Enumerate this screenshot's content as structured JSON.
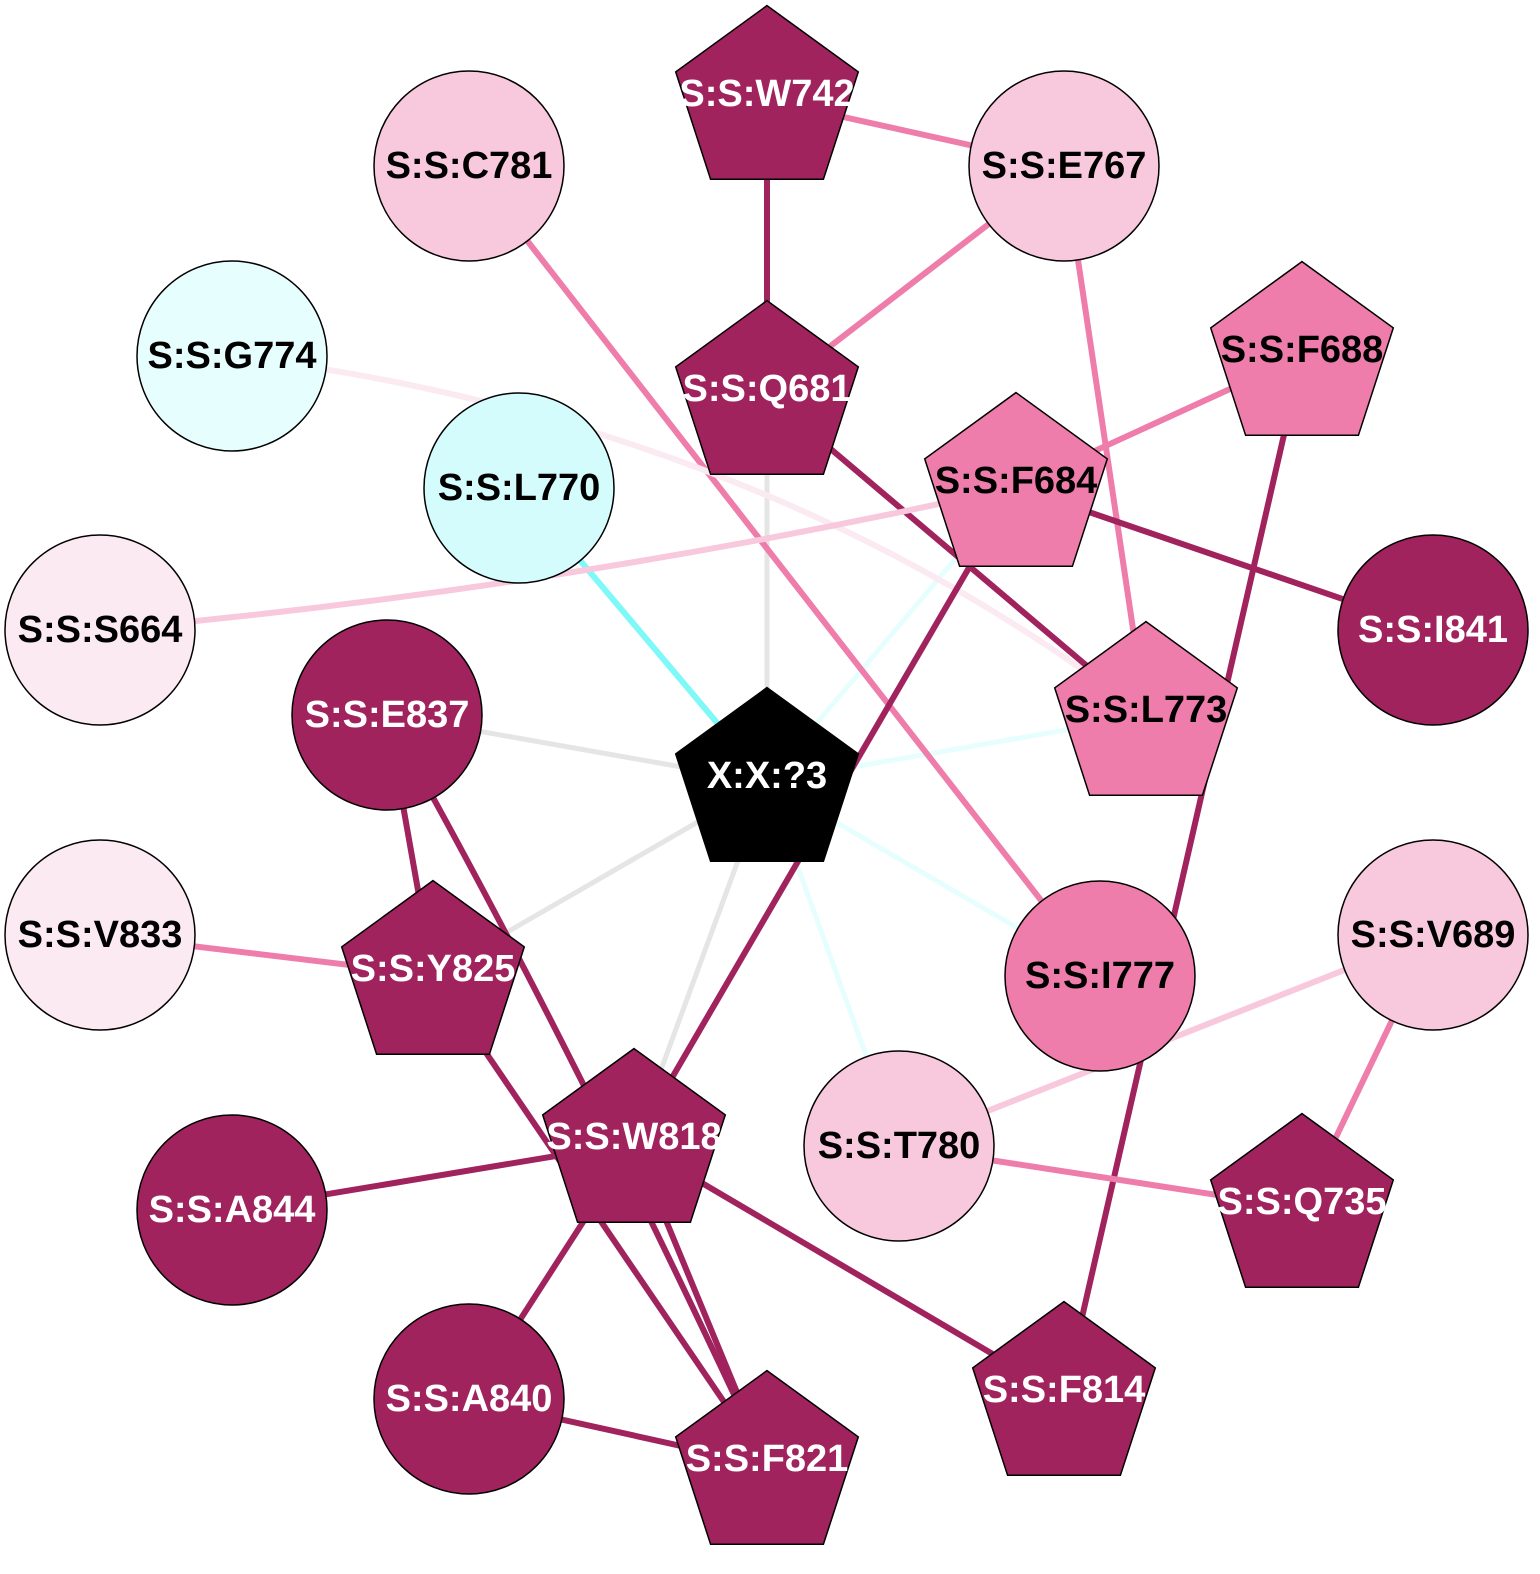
{
  "colors": {
    "dark": "#A0235E",
    "mid": "#EE7DAB",
    "light": "#F8C8DC",
    "pale": "#FBEAF1",
    "cyan": "#D4FCFC",
    "cyan_pale": "#E6FEFE",
    "center": "#000000",
    "edge_gray": "#E5E5E5"
  },
  "nodes": [
    {
      "id": "S:S:W742",
      "shape": "pentagon",
      "fill": "dark",
      "text": "white"
    },
    {
      "id": "S:S:C781",
      "shape": "circle",
      "fill": "light",
      "text": "black"
    },
    {
      "id": "S:S:E767",
      "shape": "circle",
      "fill": "light",
      "text": "black"
    },
    {
      "id": "S:S:G774",
      "shape": "circle",
      "fill": "cyan_pale",
      "text": "black"
    },
    {
      "id": "S:S:Q681",
      "shape": "pentagon",
      "fill": "dark",
      "text": "white"
    },
    {
      "id": "S:S:F688",
      "shape": "pentagon",
      "fill": "mid",
      "text": "black"
    },
    {
      "id": "S:S:L770",
      "shape": "circle",
      "fill": "cyan",
      "text": "black"
    },
    {
      "id": "S:S:F684",
      "shape": "pentagon",
      "fill": "mid",
      "text": "black"
    },
    {
      "id": "S:S:S664",
      "shape": "circle",
      "fill": "pale",
      "text": "black"
    },
    {
      "id": "S:S:I841",
      "shape": "circle",
      "fill": "dark",
      "text": "white"
    },
    {
      "id": "S:S:E837",
      "shape": "circle",
      "fill": "dark",
      "text": "white"
    },
    {
      "id": "S:S:L773",
      "shape": "pentagon",
      "fill": "mid",
      "text": "black"
    },
    {
      "id": "X:X:?3",
      "shape": "pentagon",
      "fill": "center",
      "text": "white"
    },
    {
      "id": "S:S:V833",
      "shape": "circle",
      "fill": "pale",
      "text": "black"
    },
    {
      "id": "S:S:Y825",
      "shape": "pentagon",
      "fill": "dark",
      "text": "white"
    },
    {
      "id": "S:S:I777",
      "shape": "circle",
      "fill": "mid",
      "text": "black"
    },
    {
      "id": "S:S:V689",
      "shape": "circle",
      "fill": "light",
      "text": "black"
    },
    {
      "id": "S:S:W818",
      "shape": "pentagon",
      "fill": "dark",
      "text": "white"
    },
    {
      "id": "S:S:T780",
      "shape": "circle",
      "fill": "light",
      "text": "black"
    },
    {
      "id": "S:S:A844",
      "shape": "circle",
      "fill": "dark",
      "text": "white"
    },
    {
      "id": "S:S:Q735",
      "shape": "pentagon",
      "fill": "dark",
      "text": "white"
    },
    {
      "id": "S:S:A840",
      "shape": "circle",
      "fill": "dark",
      "text": "white"
    },
    {
      "id": "S:S:F814",
      "shape": "pentagon",
      "fill": "dark",
      "text": "white"
    },
    {
      "id": "S:S:F821",
      "shape": "pentagon",
      "fill": "dark",
      "text": "white"
    }
  ],
  "edges": [
    {
      "source": "X:X:?3",
      "target": "S:S:L770",
      "color": "#7FF8F8"
    },
    {
      "source": "X:X:?3",
      "target": "S:S:Q681",
      "color": "#E5E5E5"
    },
    {
      "source": "X:X:?3",
      "target": "S:S:E837",
      "color": "#E5E5E5"
    },
    {
      "source": "X:X:?3",
      "target": "S:S:Y825",
      "color": "#E5E5E5"
    },
    {
      "source": "X:X:?3",
      "target": "S:S:W818",
      "color": "#E5E5E5"
    },
    {
      "source": "X:X:?3",
      "target": "S:S:F684",
      "color": "#E6FEFE"
    },
    {
      "source": "X:X:?3",
      "target": "S:S:L773",
      "color": "#E6FEFE"
    },
    {
      "source": "X:X:?3",
      "target": "S:S:I777",
      "color": "#E6FEFE"
    },
    {
      "source": "X:X:?3",
      "target": "S:S:T780",
      "color": "#E6FEFE"
    },
    {
      "source": "S:S:W742",
      "target": "S:S:Q681",
      "color": "#A0235E"
    },
    {
      "source": "S:S:W742",
      "target": "S:S:E767",
      "color": "#EE7DAB"
    },
    {
      "source": "S:S:E767",
      "target": "S:S:Q681",
      "color": "#EE7DAB"
    },
    {
      "source": "S:S:E767",
      "target": "S:S:L773",
      "color": "#EE7DAB"
    },
    {
      "source": "S:S:C781",
      "target": "S:S:I777",
      "color": "#EE7DAB"
    },
    {
      "source": "S:S:G774",
      "target": "S:S:L773",
      "color": "#FBEAF1"
    },
    {
      "source": "S:S:Q681",
      "target": "S:S:L773",
      "color": "#A0235E"
    },
    {
      "source": "S:S:F688",
      "target": "S:S:F684",
      "color": "#EE7DAB"
    },
    {
      "source": "S:S:F688",
      "target": "S:S:F814",
      "color": "#A0235E"
    },
    {
      "source": "S:S:F684",
      "target": "S:S:S664",
      "color": "#F8C8DC"
    },
    {
      "source": "S:S:F684",
      "target": "S:S:I841",
      "color": "#A0235E"
    },
    {
      "source": "S:S:F684",
      "target": "S:S:W818",
      "color": "#A0235E"
    },
    {
      "source": "S:S:E837",
      "target": "S:S:Y825",
      "color": "#A0235E"
    },
    {
      "source": "S:S:E837",
      "target": "S:S:F821",
      "color": "#A0235E"
    },
    {
      "source": "S:S:V833",
      "target": "S:S:Y825",
      "color": "#EE7DAB"
    },
    {
      "source": "S:S:Y825",
      "target": "S:S:F821",
      "color": "#A0235E"
    },
    {
      "source": "S:S:V689",
      "target": "S:S:T780",
      "color": "#F8C8DC"
    },
    {
      "source": "S:S:V689",
      "target": "S:S:Q735",
      "color": "#EE7DAB"
    },
    {
      "source": "S:S:T780",
      "target": "S:S:Q735",
      "color": "#EE7DAB"
    },
    {
      "source": "S:S:W818",
      "target": "S:S:A844",
      "color": "#A0235E"
    },
    {
      "source": "S:S:W818",
      "target": "S:S:A840",
      "color": "#A0235E"
    },
    {
      "source": "S:S:W818",
      "target": "S:S:F821",
      "color": "#A0235E"
    },
    {
      "source": "S:S:W818",
      "target": "S:S:F814",
      "color": "#A0235E"
    },
    {
      "source": "S:S:A840",
      "target": "S:S:F821",
      "color": "#A0235E"
    }
  ]
}
